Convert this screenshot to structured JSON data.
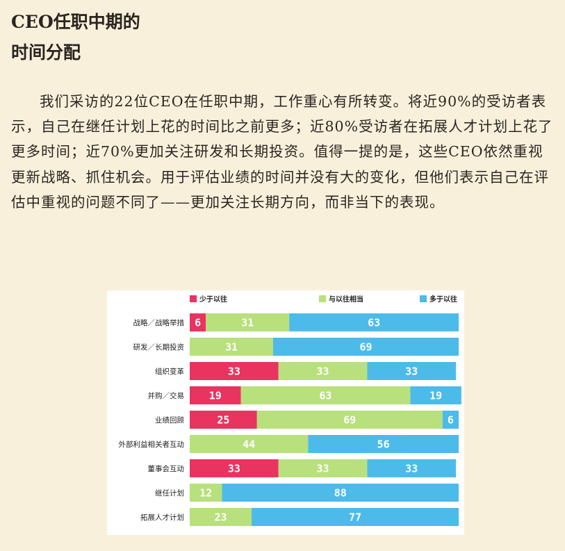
{
  "heading": {
    "line1": "CEO任职中期的",
    "line2": "时间分配"
  },
  "paragraph": "我们采访的22位CEO在任职中期，工作重心有所转变。将近90%的受访者表示，自己在继任计划上花的时间比之前更多；近80%受访者在拓展人才计划上花了更多时间；近70%更加关注研发和长期投资。值得一提的是，这些CEO依然重视更新战略、抓住机会。用于评估业绩的时间并没有大的变化，但他们表示自己在评估中重视的问题不同了——更加关注长期方向，而非当下的表现。",
  "chart_data": {
    "type": "bar",
    "orientation": "horizontal",
    "stacked": true,
    "categories": [
      "战略／战略举措",
      "研发／长期投资",
      "组织变革",
      "并购／交易",
      "业绩回顾",
      "外部利益相关者互动",
      "董事会互动",
      "继任计划",
      "拓展人才计划"
    ],
    "series": [
      {
        "name": "少于以往",
        "color": "#e8345f",
        "values": [
          6,
          0,
          33,
          19,
          25,
          0,
          33,
          0,
          0
        ]
      },
      {
        "name": "与以往相当",
        "color": "#b8e07c",
        "values": [
          31,
          31,
          33,
          63,
          69,
          44,
          33,
          12,
          23
        ]
      },
      {
        "name": "多于以往",
        "color": "#4cbbea",
        "values": [
          63,
          69,
          33,
          19,
          6,
          56,
          33,
          88,
          77
        ]
      }
    ],
    "xlim": [
      0,
      100
    ],
    "legend": "top",
    "grid": false
  }
}
